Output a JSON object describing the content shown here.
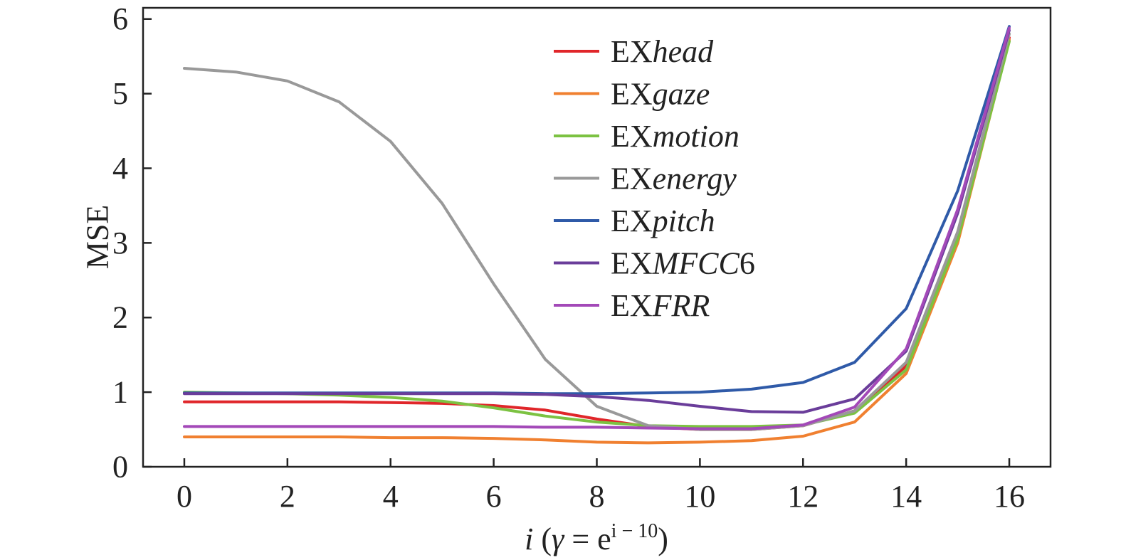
{
  "chart_data": {
    "type": "line",
    "title": "",
    "xlabel": {
      "var": "i",
      "open": " (",
      "gamma": "γ",
      "eq": " = e",
      "sup": "i − 10",
      "close": ")"
    },
    "ylabel": "MSE",
    "xlim": [
      -0.8,
      16.8
    ],
    "ylim": [
      0,
      6.15
    ],
    "xticks": [
      0,
      2,
      4,
      6,
      8,
      10,
      12,
      14,
      16
    ],
    "yticks": [
      0,
      1,
      2,
      3,
      4,
      5,
      6
    ],
    "grid": false,
    "legend_position": "top-center",
    "x": [
      0,
      1,
      2,
      3,
      4,
      5,
      6,
      7,
      8,
      9,
      10,
      11,
      12,
      13,
      14,
      15,
      16
    ],
    "series": [
      {
        "prefix": "EX",
        "name": "head",
        "color": "#e0262a",
        "values": [
          0.87,
          0.87,
          0.87,
          0.87,
          0.86,
          0.85,
          0.82,
          0.76,
          0.64,
          0.54,
          0.5,
          0.5,
          0.55,
          0.75,
          1.35,
          3.1,
          5.75
        ]
      },
      {
        "prefix": "EX",
        "name": "gaze",
        "color": "#f08030",
        "values": [
          0.4,
          0.4,
          0.4,
          0.4,
          0.39,
          0.39,
          0.38,
          0.36,
          0.33,
          0.32,
          0.33,
          0.35,
          0.41,
          0.6,
          1.25,
          3.0,
          5.72
        ]
      },
      {
        "prefix": "EX",
        "name": "motion",
        "color": "#7cc242",
        "values": [
          1.0,
          0.99,
          0.98,
          0.96,
          0.93,
          0.88,
          0.79,
          0.68,
          0.6,
          0.55,
          0.54,
          0.54,
          0.56,
          0.72,
          1.3,
          3.05,
          5.7
        ]
      },
      {
        "prefix": "EX",
        "name": "energy",
        "color": "#999999",
        "values": [
          5.34,
          5.29,
          5.17,
          4.89,
          4.36,
          3.53,
          2.45,
          1.44,
          0.81,
          0.55,
          0.5,
          0.5,
          0.55,
          0.75,
          1.4,
          3.15,
          5.8
        ]
      },
      {
        "prefix": "EX",
        "name": "pitch",
        "color": "#2f5aa8",
        "values": [
          0.99,
          0.99,
          0.99,
          0.99,
          0.99,
          0.99,
          0.99,
          0.98,
          0.98,
          0.99,
          1.0,
          1.04,
          1.13,
          1.4,
          2.12,
          3.7,
          5.9
        ]
      },
      {
        "prefix": "EX",
        "name": "MFCC",
        "suffix": "6",
        "color": "#6a3d9a",
        "values": [
          0.98,
          0.98,
          0.98,
          0.98,
          0.98,
          0.98,
          0.98,
          0.97,
          0.94,
          0.89,
          0.81,
          0.74,
          0.73,
          0.91,
          1.55,
          3.4,
          5.85
        ]
      },
      {
        "prefix": "EX",
        "name": "FRR",
        "color": "#a349b8",
        "values": [
          0.54,
          0.54,
          0.54,
          0.54,
          0.54,
          0.54,
          0.54,
          0.53,
          0.53,
          0.52,
          0.51,
          0.51,
          0.56,
          0.8,
          1.58,
          3.45,
          5.88
        ]
      }
    ]
  }
}
